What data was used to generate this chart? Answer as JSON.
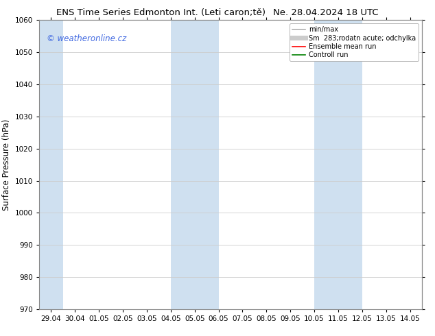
{
  "title_left": "ENS Time Series Edmonton Int. (Leti caron;tě)",
  "title_right": "Ne. 28.04.2024 18 UTC",
  "ylabel": "Surface Pressure (hPa)",
  "ylim": [
    970,
    1060
  ],
  "yticks": [
    970,
    980,
    990,
    1000,
    1010,
    1020,
    1030,
    1040,
    1050,
    1060
  ],
  "x_labels": [
    "29.04",
    "30.04",
    "01.05",
    "02.05",
    "03.05",
    "04.05",
    "05.05",
    "06.05",
    "07.05",
    "08.05",
    "09.05",
    "10.05",
    "11.05",
    "12.05",
    "13.05",
    "14.05"
  ],
  "x_positions": [
    0,
    1,
    2,
    3,
    4,
    5,
    6,
    7,
    8,
    9,
    10,
    11,
    12,
    13,
    14,
    15
  ],
  "shade_regions": [
    {
      "xmin": -0.5,
      "xmax": 0.5
    },
    {
      "xmin": 5.0,
      "xmax": 7.0
    },
    {
      "xmin": 11.0,
      "xmax": 13.0
    }
  ],
  "shade_color": "#cfe0f0",
  "watermark_text": "© weatheronline.cz",
  "watermark_color": "#4169E1",
  "legend_items": [
    {
      "label": "min/max",
      "color": "#b0b0b0",
      "lw": 1.2,
      "style": "-"
    },
    {
      "label": "Sm  283;rodatn acute; odchylka",
      "color": "#cccccc",
      "lw": 5,
      "style": "-"
    },
    {
      "label": "Ensemble mean run",
      "color": "red",
      "lw": 1.2,
      "style": "-"
    },
    {
      "label": "Controll run",
      "color": "green",
      "lw": 1.2,
      "style": "-"
    }
  ],
  "bg_color": "#ffffff",
  "grid_color": "#cccccc",
  "title_fontsize": 9.5,
  "tick_fontsize": 7.5,
  "ylabel_fontsize": 8.5,
  "legend_fontsize": 7.0,
  "watermark_fontsize": 8.5
}
